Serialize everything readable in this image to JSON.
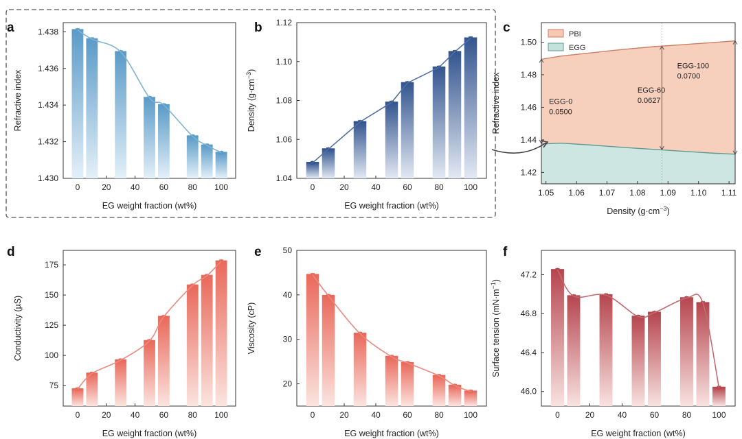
{
  "figure": {
    "colors": {
      "blue_top": "#5b9bc8",
      "blue_bottom": "#e4f0f8",
      "blue_line": "#7fb3d5",
      "navy_top": "#34568f",
      "navy_bottom": "#e3e9f3",
      "navy_line": "#4f6fa3",
      "salmon_top": "#e9695b",
      "salmon_bottom": "#fbe4df",
      "salmon_line": "#e98a7e",
      "maroon_top": "#b6464f",
      "maroon_bottom": "#f8e2e0",
      "maroon_line": "#c46a6f",
      "pbi_fill": "#f6c7b2",
      "egg_fill": "#c4e2dc",
      "pbi_line": "#cc7f63",
      "egg_line": "#5e9a92",
      "arrow": "#444444"
    }
  },
  "chart_data": [
    {
      "panel": "a",
      "type": "bar",
      "title": "",
      "xlabel": "EG weight fraction (wt%)",
      "ylabel": "Refractive index",
      "xlim": [
        -10,
        110
      ],
      "ylim": [
        1.43,
        1.4385
      ],
      "xticks": [
        "0",
        "20",
        "40",
        "60",
        "80",
        "100"
      ],
      "xtick_values": [
        0,
        20,
        40,
        60,
        80,
        100
      ],
      "yticks": [
        "1.430",
        "1.432",
        "1.434",
        "1.436",
        "1.438"
      ],
      "ytick_values": [
        1.43,
        1.432,
        1.434,
        1.436,
        1.438
      ],
      "x": [
        0,
        10,
        30,
        50,
        60,
        80,
        90,
        100
      ],
      "values": [
        1.4381,
        1.4376,
        1.4369,
        1.4344,
        1.434,
        1.4323,
        1.4318,
        1.4314
      ],
      "color": "blue",
      "fit_line": true
    },
    {
      "panel": "b",
      "type": "bar",
      "title": "",
      "xlabel": "EG weight fraction (wt%)",
      "ylabel": "Density (g·cm",
      "ylabel_sup": "−3",
      "xlim": [
        -10,
        110
      ],
      "ylim": [
        1.04,
        1.12
      ],
      "xticks": [
        "0",
        "20",
        "40",
        "60",
        "80",
        "100"
      ],
      "xtick_values": [
        0,
        20,
        40,
        60,
        80,
        100
      ],
      "yticks": [
        "1.04",
        "1.06",
        "1.08",
        "1.10",
        "1.12"
      ],
      "ytick_values": [
        1.04,
        1.06,
        1.08,
        1.1,
        1.12
      ],
      "x": [
        0,
        10,
        30,
        50,
        60,
        80,
        90,
        100
      ],
      "values": [
        1.048,
        1.055,
        1.069,
        1.079,
        1.089,
        1.097,
        1.105,
        1.112
      ],
      "color": "navy",
      "fit_line": "linear"
    },
    {
      "panel": "c",
      "type": "area",
      "title": "",
      "xlabel": "Density (g·cm",
      "xlabel_sup": "−3",
      "ylabel": "Refractive index",
      "xlim": [
        1.0485,
        1.112
      ],
      "ylim": [
        1.413,
        1.512
      ],
      "xticks": [
        "1.05",
        "1.06",
        "1.07",
        "1.08",
        "1.09",
        "1.10",
        "1.11"
      ],
      "xtick_values": [
        1.05,
        1.06,
        1.07,
        1.08,
        1.09,
        1.1,
        1.11
      ],
      "yticks": [
        "1.42",
        "1.44",
        "1.46",
        "1.48",
        "1.50"
      ],
      "ytick_values": [
        1.42,
        1.44,
        1.46,
        1.48,
        1.5
      ],
      "series": [
        {
          "name": "PBI",
          "x": [
            1.0485,
            1.055,
            1.065,
            1.075,
            1.085,
            1.095,
            1.105,
            1.112
          ],
          "values": [
            1.4895,
            1.4915,
            1.4935,
            1.4955,
            1.4972,
            1.4985,
            1.4998,
            1.5008
          ]
        },
        {
          "name": "EGG",
          "x": [
            1.0485,
            1.055,
            1.065,
            1.075,
            1.085,
            1.095,
            1.105,
            1.112
          ],
          "values": [
            1.4375,
            1.438,
            1.4368,
            1.4354,
            1.4342,
            1.433,
            1.4318,
            1.4312
          ]
        }
      ],
      "markers": [
        {
          "x": 1.0485,
          "from": 1.4378,
          "to": 1.4895
        },
        {
          "x": 1.088,
          "from": 1.434,
          "to": 1.4975
        },
        {
          "x": 1.112,
          "from": 1.4312,
          "to": 1.5008
        }
      ],
      "annotations": [
        {
          "name": "EGG-0",
          "value": "0.0500",
          "x": 1.051,
          "y": 1.462
        },
        {
          "name": "EGG-60",
          "value": "0.0627",
          "x": 1.08,
          "y": 1.469
        },
        {
          "name": "EGG-100",
          "value": "0.0700",
          "x": 1.093,
          "y": 1.484
        }
      ]
    },
    {
      "panel": "d",
      "type": "bar",
      "title": "",
      "xlabel": "EG weight fraction (wt%)",
      "ylabel": "Conductivity (µS)",
      "xlim": [
        -10,
        110
      ],
      "ylim": [
        58,
        187
      ],
      "xticks": [
        "0",
        "20",
        "40",
        "60",
        "80",
        "100"
      ],
      "xtick_values": [
        0,
        20,
        40,
        60,
        80,
        100
      ],
      "yticks": [
        "75",
        "100",
        "125",
        "150",
        "175"
      ],
      "ytick_values": [
        75,
        100,
        125,
        150,
        175
      ],
      "x": [
        0,
        10,
        30,
        50,
        60,
        80,
        90,
        100
      ],
      "values": [
        72,
        85,
        96,
        112,
        132,
        158,
        166,
        178
      ],
      "color": "salmon",
      "fit_line": true
    },
    {
      "panel": "e",
      "type": "bar",
      "title": "",
      "xlabel": "EG weight fraction (wt%)",
      "ylabel": "Viscosity (cP)",
      "xlim": [
        -10,
        110
      ],
      "ylim": [
        15,
        50
      ],
      "xticks": [
        "0",
        "20",
        "40",
        "60",
        "80",
        "100"
      ],
      "xtick_values": [
        0,
        20,
        40,
        60,
        80,
        100
      ],
      "yticks": [
        "20",
        "30",
        "40",
        "50"
      ],
      "ytick_values": [
        20,
        30,
        40,
        50
      ],
      "x": [
        0,
        10,
        30,
        50,
        60,
        80,
        90,
        100
      ],
      "values": [
        44.5,
        39.8,
        31.3,
        26.1,
        24.7,
        21.8,
        19.6,
        18.3
      ],
      "color": "salmon",
      "fit_line": true
    },
    {
      "panel": "f",
      "type": "bar",
      "title": "",
      "xlabel": "EG weight fraction (wt%)",
      "ylabel": "Surface tension (mN·m",
      "ylabel_sup": "−1",
      "xlim": [
        -10,
        110
      ],
      "ylim": [
        45.85,
        47.45
      ],
      "xticks": [
        "0",
        "20",
        "40",
        "60",
        "80",
        "100"
      ],
      "xtick_values": [
        0,
        20,
        40,
        60,
        80,
        100
      ],
      "yticks": [
        "46.0",
        "46.4",
        "46.8",
        "47.2"
      ],
      "ytick_values": [
        46.0,
        46.4,
        46.8,
        47.2
      ],
      "x": [
        0,
        10,
        30,
        50,
        60,
        80,
        90,
        100
      ],
      "values": [
        47.25,
        46.98,
        46.99,
        46.77,
        46.81,
        46.96,
        46.91,
        46.04
      ],
      "color": "maroon",
      "fit_line": true
    }
  ]
}
